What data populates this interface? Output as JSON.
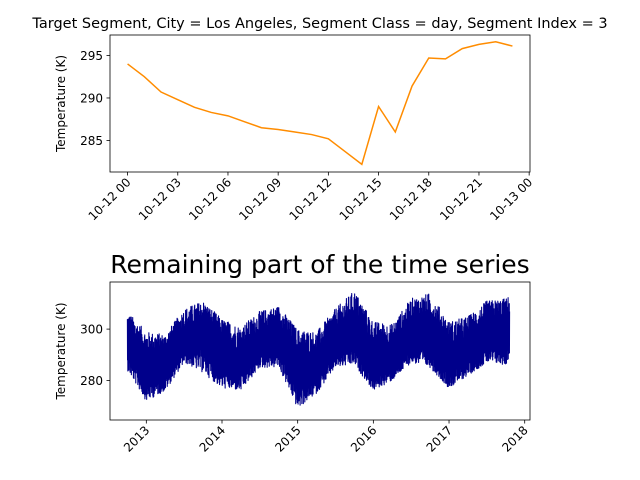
{
  "chart_data": [
    {
      "type": "line",
      "title": "Target Segment, City = Los Angeles, Segment Class = day, Segment Index = 3",
      "xlabel": "",
      "ylabel": "Temperature (K)",
      "x_tick_labels": [
        "10-12 00",
        "10-12 03",
        "10-12 06",
        "10-12 09",
        "10-12 12",
        "10-12 15",
        "10-12 18",
        "10-12 21",
        "10-13 00"
      ],
      "x_tick_hours": [
        0,
        3,
        6,
        9,
        12,
        15,
        18,
        21,
        24
      ],
      "xlim_hours": [
        -1.05,
        24.05
      ],
      "y_ticks": [
        285,
        290,
        295
      ],
      "ylim": [
        281.3,
        297.4
      ],
      "grid": false,
      "color": "#ff8c00",
      "series": [
        {
          "x_hours": [
            0,
            1,
            2,
            3,
            4,
            5,
            6,
            7,
            8,
            9,
            10,
            11,
            12,
            13,
            14,
            15,
            16,
            17,
            18,
            19,
            20,
            21,
            22,
            23
          ],
          "values": [
            294.0,
            292.5,
            290.7,
            289.8,
            288.9,
            288.3,
            287.9,
            287.2,
            286.5,
            286.3,
            286.0,
            285.7,
            285.2,
            283.7,
            282.2,
            289.0,
            286.0,
            291.4,
            294.7,
            294.6,
            295.8,
            296.3,
            296.6,
            296.1
          ]
        }
      ]
    },
    {
      "type": "line",
      "title": "Remaining part of the time series",
      "xlabel": "",
      "ylabel": "Temperature (K)",
      "x_tick_labels": [
        "2013",
        "2014",
        "2015",
        "2016",
        "2017",
        "2018"
      ],
      "x_tick_years": [
        2013,
        2014,
        2015,
        2016,
        2017,
        2018
      ],
      "xlim_years": [
        2012.52,
        2018.07
      ],
      "y_ticks": [
        280,
        300
      ],
      "ylim": [
        264.7,
        318.3
      ],
      "grid": false,
      "color": "#00008b",
      "series": [
        {
          "x_years": [
            2012.75,
            2013.0,
            2013.25,
            2013.5,
            2013.75,
            2014.0,
            2014.25,
            2014.5,
            2014.75,
            2015.0,
            2015.25,
            2015.5,
            2015.75,
            2016.0,
            2016.25,
            2016.5,
            2016.75,
            2017.0,
            2017.25,
            2017.5,
            2017.75,
            2017.8
          ],
          "mean": [
            293.0,
            284.5,
            286.0,
            294.0,
            298.0,
            289.0,
            286.0,
            293.5,
            297.5,
            283.0,
            285.0,
            294.0,
            299.0,
            287.0,
            288.0,
            296.0,
            296.5,
            286.5,
            291.0,
            296.0,
            297.0,
            298.0
          ],
          "low": [
            284.0,
            272.0,
            276.0,
            287.0,
            283.0,
            277.0,
            276.0,
            285.0,
            285.0,
            269.0,
            275.0,
            285.0,
            286.0,
            276.0,
            280.0,
            287.0,
            285.0,
            277.0,
            282.0,
            287.0,
            286.0,
            289.0
          ],
          "high": [
            307.0,
            299.0,
            298.0,
            308.0,
            311.0,
            304.0,
            301.0,
            307.0,
            309.0,
            300.0,
            299.0,
            308.0,
            315.0,
            303.0,
            302.0,
            312.0,
            314.0,
            303.0,
            305.0,
            311.0,
            312.0,
            313.0
          ]
        }
      ]
    }
  ]
}
